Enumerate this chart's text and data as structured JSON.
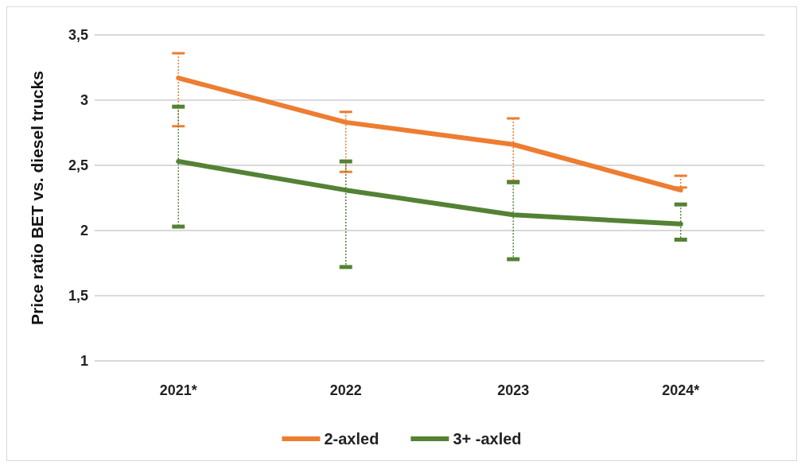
{
  "chart_data": {
    "type": "line",
    "ylabel": "Price ratio BET vs. diesel trucks",
    "categories": [
      "2021*",
      "2022",
      "2023",
      "2024*"
    ],
    "series": [
      {
        "name": "2-axled",
        "color": "#ed7d31",
        "values": [
          3.17,
          2.83,
          2.66,
          2.31
        ],
        "errors": [
          [
            2.8,
            3.36
          ],
          [
            2.45,
            2.91
          ],
          [
            2.38,
            2.86
          ],
          [
            2.33,
            2.42
          ]
        ]
      },
      {
        "name": "3+ -axled",
        "color": "#548235",
        "values": [
          2.53,
          2.31,
          2.12,
          2.05
        ],
        "errors": [
          [
            2.03,
            2.95
          ],
          [
            1.72,
            2.53
          ],
          [
            1.78,
            2.37
          ],
          [
            1.93,
            2.2
          ]
        ]
      }
    ],
    "ylim": [
      1,
      3.5
    ],
    "yticks": [
      1,
      {
        "value": 1.5,
        "label": "1,5"
      },
      2,
      {
        "value": 2.5,
        "label": "2,5"
      },
      3,
      {
        "value": 3.5,
        "label": "3,5"
      }
    ],
    "grid": "y",
    "legend": "bottom",
    "marker": "none",
    "line_style": "solid"
  }
}
